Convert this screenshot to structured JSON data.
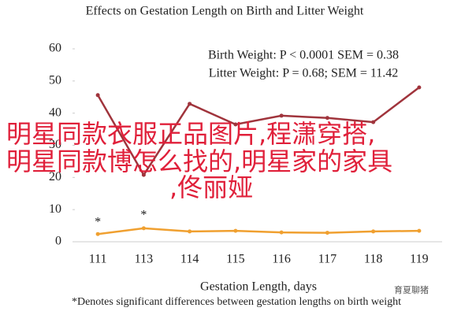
{
  "chart_data": {
    "type": "line",
    "title": "Effects on Gestation Length on Birth and Litter Weight",
    "categories": [
      "111",
      "113",
      "114",
      "115",
      "116",
      "117",
      "118",
      "119"
    ],
    "series": [
      {
        "color": "#a0343c",
        "values": [
          45.6,
          20.8,
          42.9,
          36.5,
          39.2,
          38.5,
          37.2,
          48.0
        ]
      },
      {
        "color": "#f0a030",
        "values": [
          2.4,
          4.2,
          3.2,
          3.4,
          2.9,
          2.8,
          3.2,
          3.4
        ]
      }
    ],
    "ylim": [
      0,
      60
    ],
    "yticks": [
      0,
      10,
      20,
      30,
      40,
      50,
      60
    ],
    "x_label": "Gestation Length, days",
    "stats": [
      "Birth Weight: P < 0.0001 SEM = 0.38",
      "Litter Weight: P = 0.68; SEM = 11.42"
    ],
    "annotations": [
      "*",
      "*"
    ],
    "note": "*Denotes significant differences between gestation lengths on birth weight"
  },
  "overlay": [
    "明星同款衣服正品图片,程潇穿搭,",
    "明星同款博怎么找的,明星家的家具",
    ",佟丽娅"
  ],
  "watermark": "育夏聊猪"
}
